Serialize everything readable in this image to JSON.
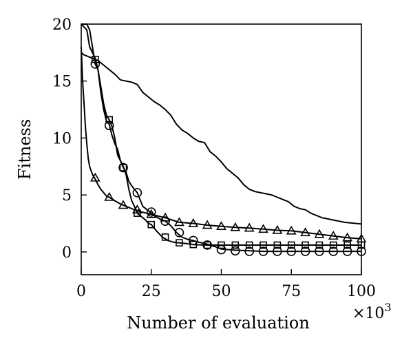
{
  "chart_data": {
    "type": "line",
    "title": "",
    "xlabel": "Number of evaluation",
    "ylabel": "Fitness",
    "x_multiplier_label": "×10",
    "x_multiplier_exponent": "3",
    "xlim": [
      0,
      100
    ],
    "ylim": [
      -2,
      20
    ],
    "x_ticks": [
      0,
      25,
      50,
      75,
      100
    ],
    "y_ticks": [
      0,
      5,
      10,
      15,
      20
    ],
    "x_tick_labels": [
      "0",
      "25",
      "50",
      "75",
      "100"
    ],
    "y_tick_labels": [
      "0",
      "5",
      "10",
      "15",
      "20"
    ],
    "grid": false,
    "legend": "none",
    "series": [
      {
        "marker": "none",
        "x": [
          0,
          1,
          3,
          6,
          9,
          12,
          14,
          16,
          18,
          20,
          22,
          24,
          26,
          28,
          30,
          32,
          34,
          36,
          38,
          40,
          42,
          44,
          46,
          48,
          50,
          52,
          54,
          56,
          58,
          60,
          62,
          64,
          66,
          68,
          70,
          72,
          74,
          76,
          78,
          80,
          82,
          84,
          86,
          88,
          90,
          92,
          94,
          96,
          98,
          100
        ],
        "y": [
          17.5,
          17.3,
          17.1,
          16.8,
          16.2,
          15.6,
          15.1,
          15.0,
          14.9,
          14.7,
          14.0,
          13.6,
          13.2,
          12.9,
          12.5,
          12.0,
          11.2,
          10.7,
          10.4,
          10.0,
          9.7,
          9.6,
          8.8,
          8.4,
          7.9,
          7.3,
          6.9,
          6.5,
          5.9,
          5.5,
          5.3,
          5.2,
          5.1,
          5.0,
          4.8,
          4.6,
          4.4,
          4.0,
          3.8,
          3.7,
          3.4,
          3.2,
          3.0,
          2.9,
          2.8,
          2.7,
          2.6,
          2.55,
          2.5,
          2.45
        ]
      },
      {
        "marker": "circle",
        "x": [
          0,
          2,
          3,
          4,
          5,
          6,
          7,
          8,
          9,
          10,
          11,
          12,
          13,
          14,
          15,
          16,
          17,
          18,
          19,
          20,
          22,
          24,
          26,
          28,
          30,
          32,
          34,
          36,
          38,
          40,
          42,
          44,
          46,
          48,
          50,
          55,
          60,
          65,
          70,
          75,
          80,
          85,
          90,
          95,
          100
        ],
        "y": [
          20,
          20,
          19.5,
          18.0,
          16.5,
          16.0,
          14.0,
          12.5,
          11.5,
          11.2,
          10.2,
          9.5,
          9.0,
          8.0,
          7.4,
          7.0,
          6.2,
          5.8,
          5.5,
          5.2,
          4.0,
          3.6,
          3.2,
          2.9,
          2.7,
          2.3,
          1.7,
          1.3,
          1.1,
          1.0,
          0.85,
          0.75,
          0.6,
          0.45,
          0.25,
          0.15,
          0.1,
          0.05,
          0.05,
          0.05,
          0.05,
          0.05,
          0.05,
          0.05,
          0.05
        ],
        "marker_x": [
          5,
          10,
          15,
          20,
          25,
          30,
          35,
          40,
          45,
          50,
          55,
          60,
          65,
          70,
          75,
          80,
          85,
          90,
          95,
          100
        ],
        "marker_y": [
          16.5,
          11.1,
          7.4,
          5.2,
          3.5,
          2.7,
          1.7,
          1.0,
          0.6,
          0.2,
          0.1,
          0.05,
          0.05,
          0.05,
          0.05,
          0.05,
          0.05,
          0.05,
          0.05,
          0.05
        ]
      },
      {
        "marker": "square",
        "x": [
          0,
          2,
          3,
          4,
          5,
          6,
          7,
          8,
          9,
          10,
          11,
          12,
          13,
          14,
          15,
          16,
          17,
          18,
          19,
          20,
          21,
          22,
          23,
          24,
          25,
          27,
          29,
          31,
          33,
          35,
          37,
          40,
          45,
          50,
          55,
          60,
          65,
          70,
          75,
          80,
          85,
          90,
          95,
          100
        ],
        "y": [
          20,
          19.5,
          18.0,
          17.5,
          17.0,
          16.0,
          14.5,
          13.0,
          12.0,
          11.6,
          11.0,
          10.0,
          8.5,
          8.0,
          7.5,
          6.8,
          5.5,
          4.5,
          4.0,
          3.4,
          3.2,
          3.0,
          2.8,
          2.5,
          2.4,
          1.8,
          1.3,
          1.0,
          0.85,
          0.8,
          0.75,
          0.65,
          0.6,
          0.6,
          0.6,
          0.6,
          0.6,
          0.6,
          0.6,
          0.6,
          0.6,
          0.6,
          0.6,
          0.6
        ],
        "marker_x": [
          5,
          10,
          15,
          20,
          25,
          30,
          35,
          40,
          45,
          50,
          55,
          60,
          65,
          70,
          75,
          80,
          85,
          90,
          95,
          100
        ],
        "marker_y": [
          16.9,
          11.6,
          7.4,
          3.4,
          2.4,
          1.3,
          0.8,
          0.65,
          0.6,
          0.6,
          0.6,
          0.6,
          0.6,
          0.6,
          0.6,
          0.6,
          0.6,
          0.6,
          0.6,
          0.6
        ]
      },
      {
        "marker": "triangle",
        "x": [
          0,
          0.5,
          1,
          1.5,
          2,
          2.5,
          3,
          4,
          5,
          6,
          7,
          8,
          9,
          10,
          12,
          14,
          16,
          18,
          20,
          25,
          30,
          35,
          40,
          45,
          50,
          55,
          60,
          65,
          70,
          75,
          80,
          85,
          90,
          95,
          100
        ],
        "y": [
          18,
          15,
          13,
          11,
          9.5,
          8.2,
          7.5,
          6.8,
          6.4,
          5.9,
          5.5,
          5.2,
          4.9,
          4.8,
          4.5,
          4.2,
          4.0,
          3.8,
          3.6,
          3.3,
          3.0,
          2.6,
          2.5,
          2.35,
          2.25,
          2.15,
          2.1,
          2.0,
          1.9,
          1.85,
          1.7,
          1.55,
          1.4,
          1.25,
          1.15
        ],
        "marker_x": [
          5,
          10,
          15,
          20,
          25,
          30,
          35,
          40,
          45,
          50,
          55,
          60,
          65,
          70,
          75,
          80,
          85,
          90,
          95,
          100
        ],
        "marker_y": [
          6.5,
          4.8,
          4.1,
          3.7,
          3.3,
          3.0,
          2.6,
          2.5,
          2.35,
          2.25,
          2.15,
          2.1,
          2.0,
          1.9,
          1.85,
          1.7,
          1.55,
          1.4,
          1.25,
          1.15
        ]
      }
    ]
  }
}
